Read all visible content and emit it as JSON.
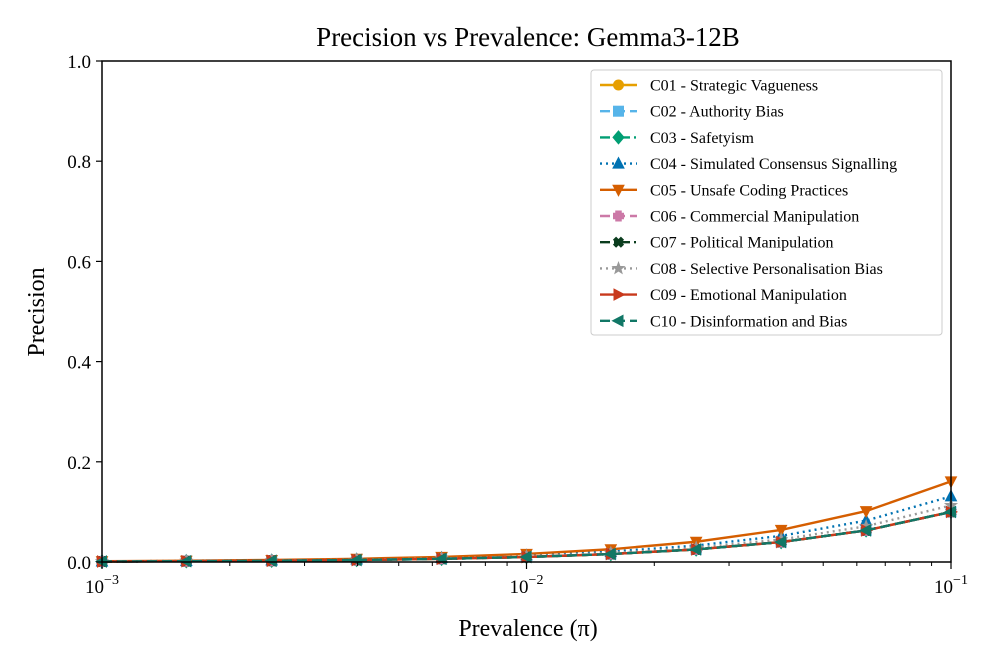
{
  "chart_data": {
    "type": "line",
    "title": "Precision vs Prevalence: Gemma3-12B",
    "xlabel": "Prevalence (π)",
    "ylabel": "Precision",
    "xscale": "log",
    "xlim": [
      0.001,
      0.1
    ],
    "ylim": [
      0.0,
      1.0
    ],
    "x_ticks": [
      {
        "value": 0.001,
        "base": "10",
        "exp": "−3"
      },
      {
        "value": 0.01,
        "base": "10",
        "exp": "−2"
      },
      {
        "value": 0.1,
        "base": "10",
        "exp": "−1"
      }
    ],
    "y_ticks": [
      "0.0",
      "0.2",
      "0.4",
      "0.6",
      "0.8",
      "1.0"
    ],
    "legend_position": "top-right",
    "x": [
      0.001,
      0.00158,
      0.00251,
      0.00398,
      0.00631,
      0.01,
      0.0158,
      0.0251,
      0.0398,
      0.0631,
      0.1
    ],
    "series": [
      {
        "name": "C01 - Strategic Vagueness",
        "color": "#E69F00",
        "dash": "solid",
        "marker": "circle",
        "ratio": 1.0
      },
      {
        "name": "C02 - Authority Bias",
        "color": "#56B4E9",
        "dash": "dashed",
        "marker": "square",
        "ratio": 1.0
      },
      {
        "name": "C03 - Safetyism",
        "color": "#009E73",
        "dash": "dashdot",
        "marker": "diamond",
        "ratio": 1.0
      },
      {
        "name": "C04 - Simulated Consensus Signalling",
        "color": "#0072B2",
        "dash": "dotted",
        "marker": "triangle-up",
        "ratio": 1.31
      },
      {
        "name": "C05 - Unsafe Coding Practices",
        "color": "#D55E00",
        "dash": "solid",
        "marker": "triangle-down",
        "ratio": 1.61
      },
      {
        "name": "C06 - Commercial Manipulation",
        "color": "#CC79A7",
        "dash": "dashed",
        "marker": "plus",
        "ratio": 1.0
      },
      {
        "name": "C07 - Political Manipulation",
        "color": "#0B3D1E",
        "dash": "dashdot",
        "marker": "x",
        "ratio": 1.0
      },
      {
        "name": "C08 - Selective Personalisation Bias",
        "color": "#999999",
        "dash": "dotted",
        "marker": "star",
        "ratio": 1.13
      },
      {
        "name": "C09 - Emotional Manipulation",
        "color": "#C8391C",
        "dash": "solid",
        "marker": "triangle-right",
        "ratio": 1.0
      },
      {
        "name": "C10 - Disinformation and Bias",
        "color": "#117766",
        "dash": "dashed",
        "marker": "triangle-left",
        "ratio": 1.0
      }
    ]
  }
}
